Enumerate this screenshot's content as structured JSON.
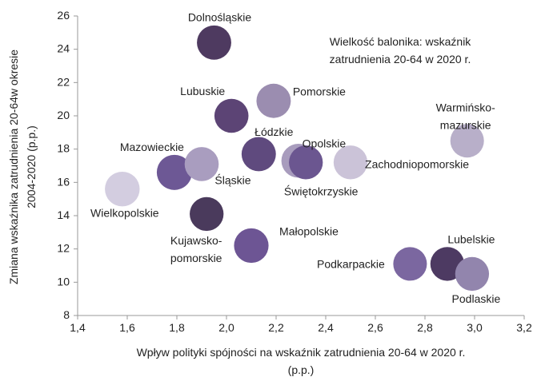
{
  "chart_data": {
    "type": "bubble",
    "annotation": "Wielkość balonika: wskaźnik\nzatrudnienia 20-64 w 2020 r.",
    "x_label": "Wpływ polityki spójności na wskaźnik zatrudnienia 20-64 w 2020 r.\n(p.p.)",
    "y_label": "Zmiana wskaźnika zatrudnienia 20-64w okresie\n2004-2020 (p.p.)",
    "categories": [
      "Dolnośląskie",
      "Lubuskie",
      "Pomorskie",
      "Łódzkie",
      "Opolskie",
      "Świętokrzyskie",
      "Zachodniopomorskie",
      "Warmińsko-\nmazurskie",
      "Mazowieckie",
      "Śląskie",
      "Wielkopolskie",
      "Kujawsko-\npomorskie",
      "Małopolskie",
      "Podkarpackie",
      "Lubelskie",
      "Podlaskie"
    ],
    "x": [
      1.95,
      2.02,
      2.19,
      2.13,
      2.29,
      2.32,
      2.5,
      2.97,
      1.79,
      1.9,
      1.58,
      1.92,
      2.1,
      2.74,
      2.89,
      2.99
    ],
    "values": [
      24.4,
      20.0,
      20.9,
      17.7,
      17.3,
      17.2,
      17.2,
      18.5,
      16.6,
      17.1,
      15.6,
      14.1,
      12.2,
      11.1,
      11.1,
      10.5
    ],
    "sizes": [
      76,
      75,
      76,
      76,
      75,
      74,
      74,
      73,
      80,
      75,
      78,
      74,
      77,
      73,
      74,
      74
    ],
    "colors": [
      "#4e3a60",
      "#5c4475",
      "#9b8db0",
      "#5f4a7e",
      "#a89cbd",
      "#6b5690",
      "#cbc3d8",
      "#b8afc9",
      "#6d5895",
      "#a99dbf",
      "#d3cde0",
      "#4a3a5c",
      "#6d5594",
      "#7b67a0",
      "#4d3a62",
      "#9285ad"
    ],
    "xlim": [
      1.4,
      3.2
    ],
    "xticks": [
      {
        "value": 1.4,
        "label": "1,4"
      },
      {
        "value": 1.6,
        "label": "1,6"
      },
      {
        "value": 1.8,
        "label": "1,8"
      },
      {
        "value": 2.0,
        "label": "2,0"
      },
      {
        "value": 2.2,
        "label": "2,2"
      },
      {
        "value": 2.4,
        "label": "2,4"
      },
      {
        "value": 2.6,
        "label": "2,6"
      },
      {
        "value": 2.8,
        "label": "2,8"
      },
      {
        "value": 3.0,
        "label": "3,0"
      },
      {
        "value": 3.2,
        "label": "3,2"
      }
    ],
    "ylim": [
      8,
      26
    ],
    "yticks": [
      8,
      10,
      12,
      14,
      16,
      18,
      20,
      22,
      24,
      26
    ]
  }
}
